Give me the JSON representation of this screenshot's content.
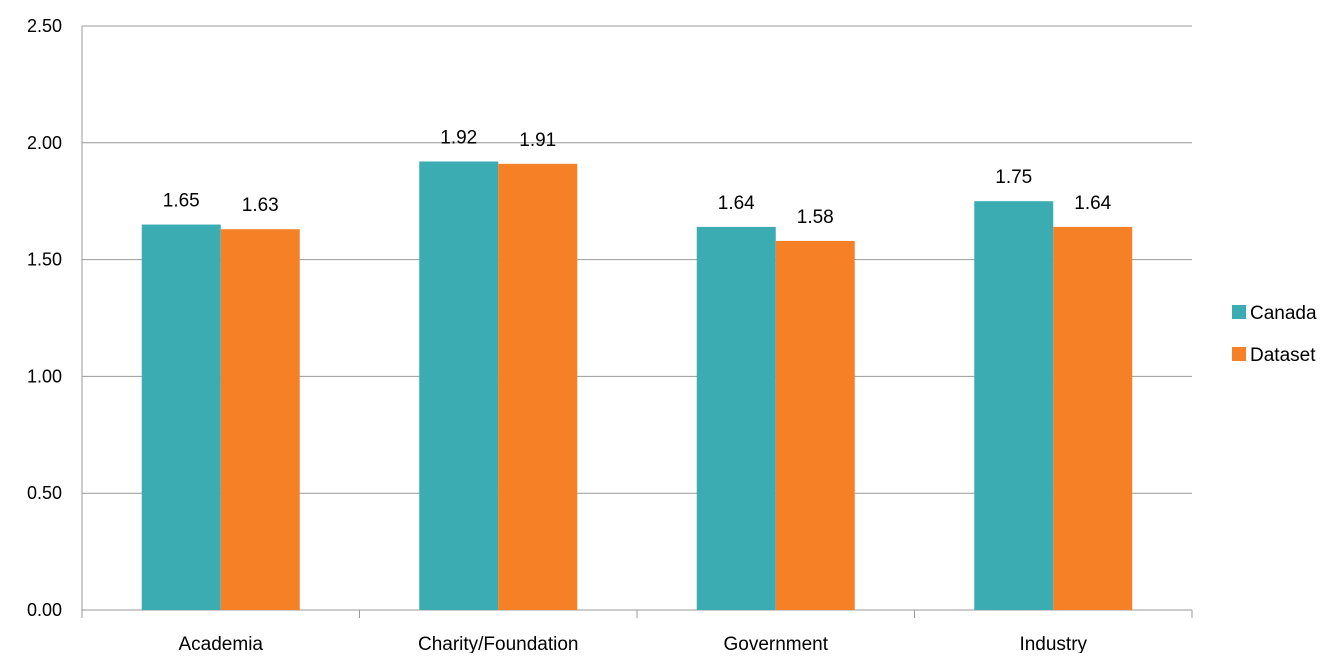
{
  "chart_data": {
    "type": "bar",
    "categories": [
      "Academia",
      "Charity/Foundation",
      "Government",
      "Industry"
    ],
    "series": [
      {
        "name": "Canada",
        "values": [
          1.65,
          1.92,
          1.64,
          1.75
        ],
        "labels": [
          "1.65",
          "1.92",
          "1.64",
          "1.75"
        ]
      },
      {
        "name": "Dataset",
        "values": [
          1.63,
          1.91,
          1.58,
          1.64
        ],
        "labels": [
          "1.63",
          "1.91",
          "1.58",
          "1.64"
        ]
      }
    ],
    "ylim": [
      0,
      2.5
    ],
    "yticks": [
      "0.00",
      "0.50",
      "1.00",
      "1.50",
      "2.00",
      "2.50"
    ],
    "grid": true,
    "legend_position": "right",
    "colors": {
      "Canada": "#3BACB2",
      "Dataset": "#F58025",
      "gridline": "#999999"
    }
  }
}
